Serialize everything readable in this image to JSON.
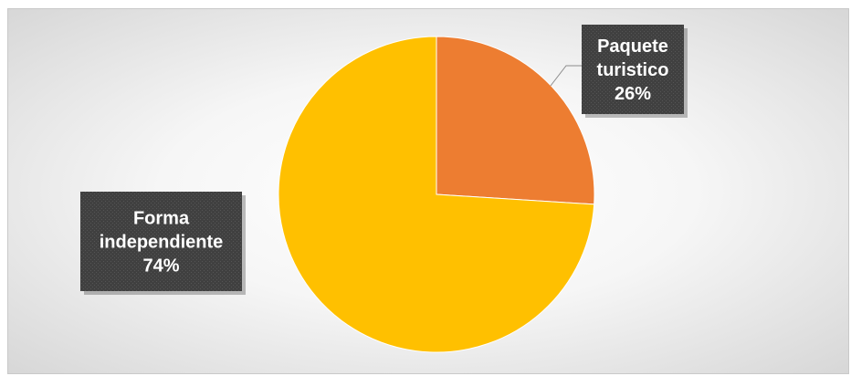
{
  "chart_data": {
    "type": "pie",
    "slices": [
      {
        "name": "Paquete turistico",
        "label_lines": [
          "Paquete",
          "turistico"
        ],
        "percent_label": "26%",
        "value": 26,
        "color": "#ED7D31"
      },
      {
        "name": "Forma independiente",
        "label_lines": [
          "Forma",
          "independiente"
        ],
        "percent_label": "74%",
        "value": 74,
        "color": "#FFC000"
      }
    ],
    "start_angle_deg": 0,
    "direction": "clockwise",
    "data_labels": "callout boxes with category name and percentage",
    "label_box_color": "#404040",
    "legend": "none"
  }
}
